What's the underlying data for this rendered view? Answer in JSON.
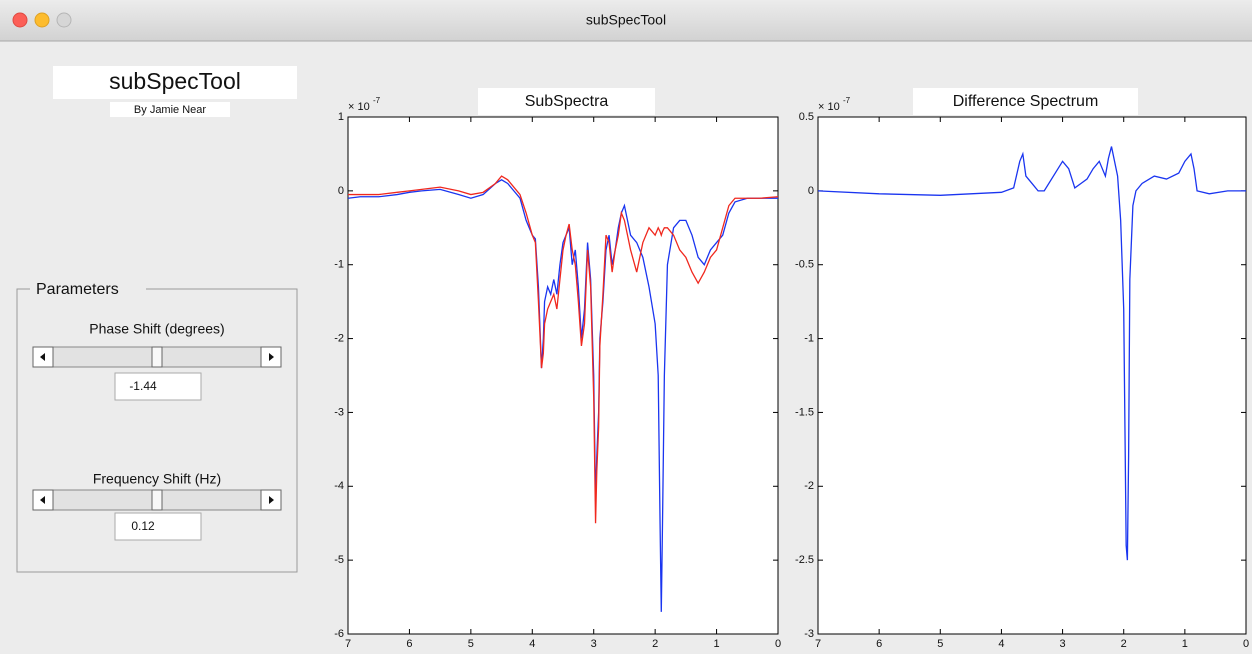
{
  "window": {
    "title": "subSpecTool"
  },
  "app": {
    "title": "subSpecTool",
    "author": "By Jamie Near"
  },
  "parameters": {
    "title": "Parameters",
    "phase": {
      "label": "Phase Shift (degrees)",
      "value": -1.44
    },
    "frequency": {
      "label": "Frequency Shift (Hz)",
      "value": 0.12
    }
  },
  "chart_data": [
    {
      "type": "line",
      "title": "SubSpectra",
      "y_exponent_base": "× 10",
      "y_exponent": "-7",
      "x": [
        7.0,
        6.8,
        6.5,
        6.2,
        6.0,
        5.8,
        5.5,
        5.2,
        5.0,
        4.8,
        4.6,
        4.5,
        4.4,
        4.3,
        4.2,
        4.1,
        4.0,
        3.95,
        3.9,
        3.85,
        3.82,
        3.8,
        3.75,
        3.7,
        3.65,
        3.6,
        3.55,
        3.5,
        3.45,
        3.4,
        3.35,
        3.3,
        3.25,
        3.2,
        3.15,
        3.1,
        3.05,
        3.0,
        2.97,
        2.95,
        2.92,
        2.9,
        2.85,
        2.8,
        2.75,
        2.7,
        2.65,
        2.6,
        2.55,
        2.5,
        2.45,
        2.4,
        2.3,
        2.2,
        2.1,
        2.0,
        1.95,
        1.92,
        1.9,
        1.88,
        1.85,
        1.8,
        1.7,
        1.6,
        1.5,
        1.4,
        1.3,
        1.2,
        1.1,
        1.0,
        0.9,
        0.8,
        0.7,
        0.5,
        0.3,
        0.0
      ],
      "series": [
        {
          "color": "#1a35f0",
          "values": [
            -0.1,
            -0.08,
            -0.08,
            -0.05,
            -0.02,
            0,
            0.02,
            -0.05,
            -0.1,
            -0.05,
            0.1,
            0.15,
            0.1,
            0,
            -0.1,
            -0.4,
            -0.6,
            -0.65,
            -1.3,
            -2.4,
            -2.0,
            -1.5,
            -1.3,
            -1.4,
            -1.2,
            -1.4,
            -1.0,
            -0.7,
            -0.6,
            -0.5,
            -1.0,
            -0.8,
            -1.3,
            -2.0,
            -1.6,
            -0.7,
            -1.2,
            -2.5,
            -4.2,
            -3.6,
            -3.0,
            -2.0,
            -1.5,
            -0.8,
            -0.6,
            -1.0,
            -0.8,
            -0.5,
            -0.3,
            -0.2,
            -0.4,
            -0.6,
            -0.7,
            -0.9,
            -1.3,
            -1.8,
            -2.5,
            -4.5,
            -5.7,
            -4.5,
            -2.5,
            -1.0,
            -0.5,
            -0.4,
            -0.4,
            -0.6,
            -0.9,
            -1.0,
            -0.8,
            -0.7,
            -0.6,
            -0.3,
            -0.15,
            -0.1,
            -0.1,
            -0.1
          ]
        },
        {
          "color": "#f0281e",
          "values": [
            -0.05,
            -0.05,
            -0.05,
            -0.02,
            0,
            0.02,
            0.05,
            0,
            -0.05,
            -0.02,
            0.1,
            0.2,
            0.15,
            0.05,
            -0.05,
            -0.3,
            -0.6,
            -0.7,
            -1.5,
            -2.4,
            -2.2,
            -1.8,
            -1.6,
            -1.5,
            -1.4,
            -1.6,
            -1.2,
            -0.8,
            -0.6,
            -0.45,
            -0.8,
            -1.0,
            -1.5,
            -2.1,
            -1.8,
            -0.8,
            -1.3,
            -2.8,
            -4.5,
            -3.8,
            -3.2,
            -2.1,
            -1.4,
            -0.6,
            -0.7,
            -1.1,
            -0.8,
            -0.6,
            -0.3,
            -0.4,
            -0.6,
            -0.8,
            -1.1,
            -0.7,
            -0.5,
            -0.6,
            -0.5,
            -0.55,
            -0.6,
            -0.55,
            -0.5,
            -0.5,
            -0.6,
            -0.8,
            -0.9,
            -1.1,
            -1.25,
            -1.1,
            -0.9,
            -0.8,
            -0.5,
            -0.2,
            -0.1,
            -0.1,
            -0.1,
            -0.08
          ]
        }
      ],
      "xlim": [
        7,
        0
      ],
      "xticks": [
        7,
        6,
        5,
        4,
        3,
        2,
        1,
        0
      ],
      "ylim": [
        -6,
        1
      ],
      "yticks": [
        1,
        0,
        -1,
        -2,
        -3,
        -4,
        -5,
        -6
      ]
    },
    {
      "type": "line",
      "title": "Difference Spectrum",
      "y_exponent_base": "× 10",
      "y_exponent": "-7",
      "x": [
        7.0,
        6.0,
        5.0,
        4.5,
        4.0,
        3.8,
        3.7,
        3.65,
        3.6,
        3.5,
        3.4,
        3.3,
        3.0,
        2.9,
        2.8,
        2.7,
        2.6,
        2.5,
        2.4,
        2.3,
        2.25,
        2.2,
        2.1,
        2.05,
        2.0,
        1.98,
        1.96,
        1.94,
        1.92,
        1.9,
        1.85,
        1.8,
        1.7,
        1.5,
        1.3,
        1.1,
        1.0,
        0.9,
        0.85,
        0.8,
        0.6,
        0.3,
        0.0
      ],
      "series": [
        {
          "color": "#1a35f0",
          "values": [
            0.0,
            -0.02,
            -0.03,
            -0.02,
            -0.01,
            0.02,
            0.2,
            0.25,
            0.1,
            0.05,
            0.0,
            0.0,
            0.2,
            0.15,
            0.02,
            0.05,
            0.08,
            0.15,
            0.2,
            0.1,
            0.22,
            0.3,
            0.1,
            -0.2,
            -0.8,
            -1.6,
            -2.4,
            -2.5,
            -1.8,
            -0.6,
            -0.1,
            0.0,
            0.05,
            0.1,
            0.08,
            0.12,
            0.2,
            0.25,
            0.15,
            0.0,
            -0.02,
            0.0,
            0.0
          ]
        }
      ],
      "xlim": [
        7,
        0
      ],
      "xticks": [
        7,
        6,
        5,
        4,
        3,
        2,
        1,
        0
      ],
      "ylim": [
        -3,
        0.5
      ],
      "yticks": [
        0.5,
        0,
        -0.5,
        -1,
        -1.5,
        -2,
        -2.5,
        -3
      ]
    }
  ]
}
